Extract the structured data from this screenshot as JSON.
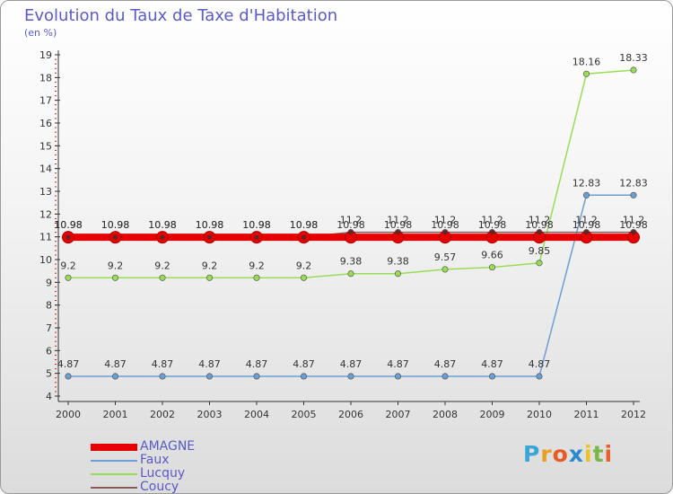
{
  "chart_data": {
    "type": "line",
    "title": "Evolution du Taux de Taxe d'Habitation",
    "unit_label": "(en %)",
    "x": [
      "2000",
      "2001",
      "2002",
      "2003",
      "2004",
      "2005",
      "2006",
      "2007",
      "2008",
      "2009",
      "2010",
      "2011",
      "2012"
    ],
    "ylim": [
      4,
      19
    ],
    "yticks": [
      4,
      5,
      6,
      7,
      8,
      9,
      10,
      11,
      12,
      13,
      14,
      15,
      16,
      17,
      18,
      19
    ],
    "grid": false,
    "legend_position": "bottom-left",
    "series": [
      {
        "name": "AMAGNE",
        "color": "#e60000",
        "values": [
          10.98,
          10.98,
          10.98,
          10.98,
          10.98,
          10.98,
          10.98,
          10.98,
          10.98,
          10.98,
          10.98,
          10.98,
          10.98
        ],
        "labels": [
          "10.98",
          "10.98",
          "10.98",
          "10.98",
          "10.98",
          "10.98",
          "10.98",
          "10.98",
          "10.98",
          "10.98",
          "10.98",
          "10.98",
          "10.98"
        ]
      },
      {
        "name": "Faux",
        "color": "#6b9fd4",
        "values": [
          4.87,
          4.87,
          4.87,
          4.87,
          4.87,
          4.87,
          4.87,
          4.87,
          4.87,
          4.87,
          4.87,
          12.83,
          12.83
        ],
        "labels": [
          "4.87",
          "4.87",
          "4.87",
          "4.87",
          "4.87",
          "4.87",
          "4.87",
          "4.87",
          "4.87",
          "4.87",
          "4.87",
          "12.83",
          "12.83"
        ]
      },
      {
        "name": "Lucquy",
        "color": "#99dd55",
        "values": [
          9.2,
          9.2,
          9.2,
          9.2,
          9.2,
          9.2,
          9.38,
          9.38,
          9.57,
          9.66,
          9.85,
          18.16,
          18.33
        ],
        "labels": [
          "9.2",
          "9.2",
          "9.2",
          "9.2",
          "9.2",
          "9.2",
          "9.38",
          "9.38",
          "9.57",
          "9.66",
          "9.85",
          "18.16",
          "18.33"
        ]
      },
      {
        "name": "Coucy",
        "color": "#8a5a5a",
        "values": [
          10.98,
          10.98,
          10.98,
          10.98,
          10.98,
          10.98,
          11.2,
          11.2,
          11.2,
          11.2,
          11.2,
          11.2,
          11.2
        ],
        "labels": [
          "10.98",
          "10.98",
          "10.98",
          "10.98",
          "10.98",
          "10.98",
          "11.2",
          "11.2",
          "11.2",
          "11.2",
          "11.2",
          "11.2",
          "11.2"
        ]
      }
    ]
  },
  "logo": {
    "letters": [
      "P",
      "r",
      "o",
      "x",
      "i",
      "t",
      "i"
    ],
    "colors": [
      "#3aa6d8",
      "#e8a024",
      "#e85a24",
      "#2a8ad0",
      "#f0c020",
      "#7ab648",
      "#e8602a"
    ]
  }
}
